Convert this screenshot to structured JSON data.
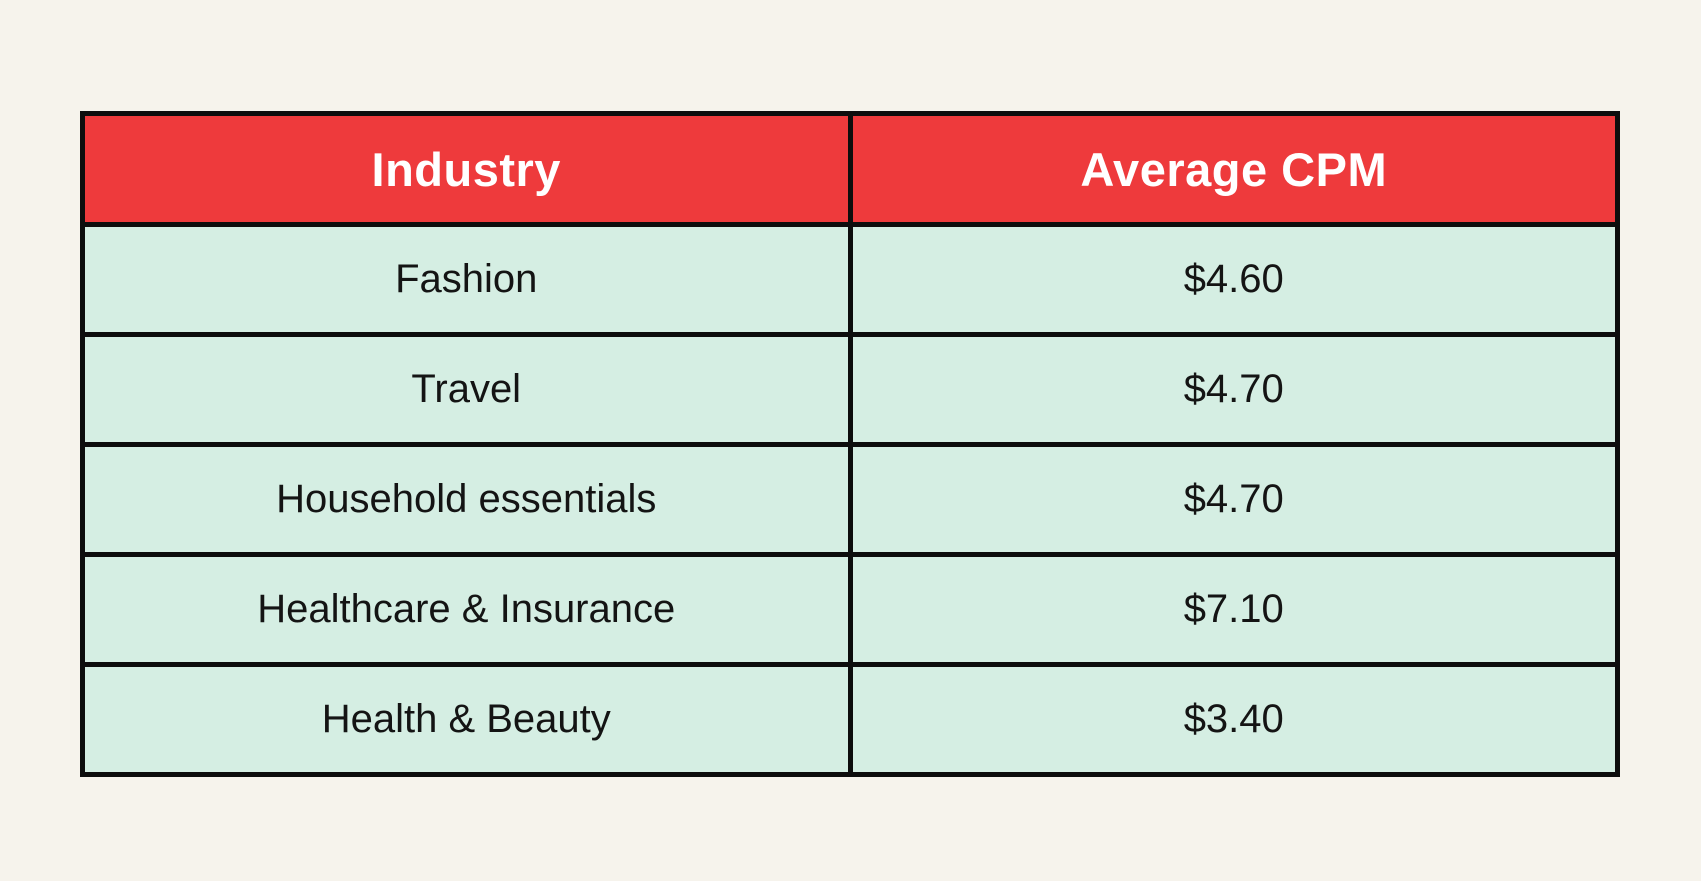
{
  "chart_data": {
    "type": "table",
    "columns": [
      "Industry",
      "Average CPM"
    ],
    "rows": [
      [
        "Fashion",
        "$4.60"
      ],
      [
        "Travel",
        "$4.70"
      ],
      [
        "Household essentials",
        "$4.70"
      ],
      [
        "Healthcare & Insurance",
        "$7.10"
      ],
      [
        "Health & Beauty",
        "$3.40"
      ]
    ],
    "values_numeric": [
      4.6,
      4.7,
      4.7,
      7.1,
      3.4
    ]
  },
  "colors": {
    "page_bg": "#F6F3EC",
    "header_bg": "#EE3A3C",
    "header_text": "#FFFFFF",
    "row_bg": "#D5EEE3",
    "cell_text": "#141414",
    "border": "#0D0D0D"
  }
}
